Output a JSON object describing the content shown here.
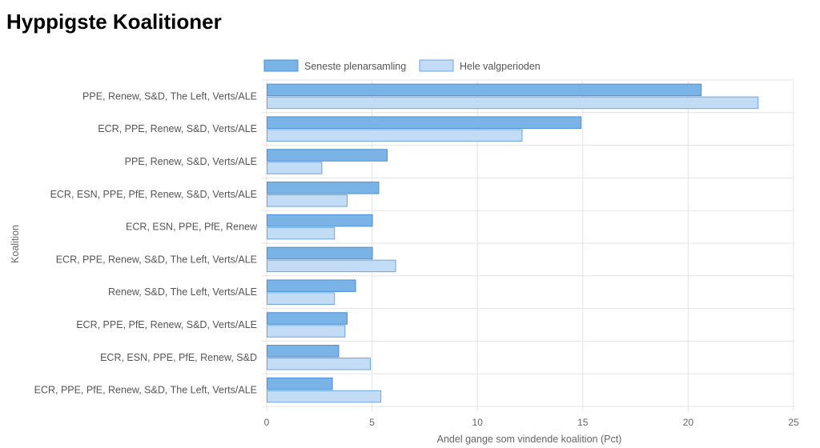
{
  "page": {
    "title": "Hyppigste Koalitioner"
  },
  "chart_data": {
    "type": "bar",
    "orientation": "horizontal",
    "title": "",
    "xlabel": "Andel gange som vindende koalition (Pct)",
    "ylabel": "Koalition",
    "xlim": [
      0,
      25
    ],
    "xticks": [
      "0",
      "5",
      "10",
      "15",
      "20",
      "25"
    ],
    "grid": true,
    "legend_position": "top-center",
    "categories": [
      "PPE, Renew, S&D, The Left, Verts/ALE",
      "ECR, PPE, Renew, S&D, Verts/ALE",
      "PPE, Renew, S&D, Verts/ALE",
      "ECR, ESN, PPE, PfE, Renew, S&D, Verts/ALE",
      "ECR, ESN, PPE, PfE, Renew",
      "ECR, PPE, Renew, S&D, The Left, Verts/ALE",
      "Renew, S&D, The Left, Verts/ALE",
      "ECR, PPE, PfE, Renew, S&D, Verts/ALE",
      "ECR, ESN, PPE, PfE, Renew, S&D",
      "ECR, PPE, PfE, Renew, S&D, The Left, Verts/ALE"
    ],
    "series": [
      {
        "name": "Seneste plenarsamling",
        "color": "#7ab3e6",
        "border_color": "#4a90d9",
        "values": [
          20.6,
          14.9,
          5.7,
          5.3,
          5.0,
          5.0,
          4.2,
          3.8,
          3.4,
          3.1
        ]
      },
      {
        "name": "Hele valgperioden",
        "color": "#c3dcf5",
        "border_color": "#6aa6e0",
        "values": [
          23.3,
          12.1,
          2.6,
          3.8,
          3.2,
          6.1,
          3.2,
          3.7,
          4.9,
          5.4
        ]
      }
    ]
  }
}
